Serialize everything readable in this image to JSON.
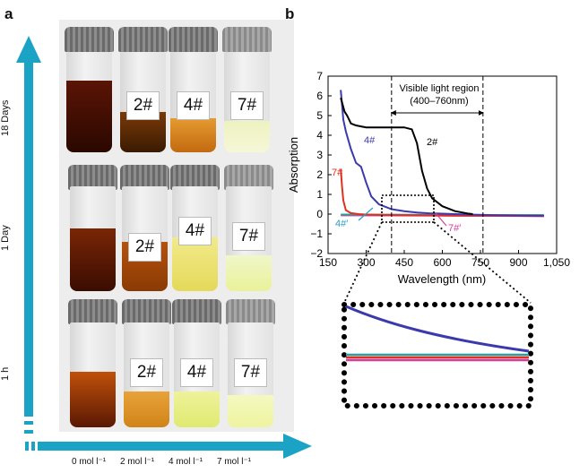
{
  "panel_a": {
    "letter": "a",
    "time_labels": [
      "18 Days",
      "1 Day",
      "1 h"
    ],
    "concentration_labels": [
      "0 mol l⁻¹",
      "2 mol l⁻¹",
      "4 mol l⁻¹",
      "7 mol l⁻¹"
    ],
    "vial_labels": [
      "2#",
      "4#",
      "7#"
    ],
    "colors": {
      "arrow": "#1ba3c6",
      "dark_liquid": "#3a0c02",
      "orange_liquid": "#c86a12",
      "yellow_liquid": "#e8e07a",
      "pale_liquid": "#eef5c8"
    }
  },
  "panel_b": {
    "letter": "b",
    "visible_region_label": "Visible light region",
    "visible_region_range": "(400–760nm)"
  },
  "chart_data": {
    "type": "line",
    "xlabel": "Wavelength (nm)",
    "ylabel": "Absorption",
    "xlim": [
      150,
      1050
    ],
    "ylim": [
      -2,
      7
    ],
    "xticks": [
      150,
      300,
      450,
      600,
      750,
      900,
      1050
    ],
    "xtick_labels": [
      "150",
      "300",
      "450",
      "600",
      "750",
      "900",
      "1,050"
    ],
    "yticks": [
      -2,
      -1,
      0,
      1,
      2,
      3,
      4,
      5,
      6,
      7
    ],
    "grid": false,
    "visible_region": [
      400,
      760
    ],
    "series": [
      {
        "name": "2#",
        "color": "#000000",
        "x": [
          200,
          215,
          225,
          240,
          260,
          280,
          300,
          330,
          360,
          400,
          450,
          480,
          500,
          520,
          540,
          560,
          600,
          650,
          700,
          720
        ],
        "y": [
          5.9,
          5.2,
          5.0,
          4.6,
          4.5,
          4.45,
          4.4,
          4.4,
          4.4,
          4.4,
          4.4,
          4.3,
          3.6,
          2.2,
          1.3,
          0.8,
          0.4,
          0.15,
          0.03,
          0.0
        ]
      },
      {
        "name": "4#",
        "color": "#3a3aad",
        "x": [
          200,
          210,
          220,
          240,
          260,
          280,
          300,
          320,
          350,
          400,
          450,
          500,
          550,
          600,
          650,
          700,
          800,
          900,
          1000
        ],
        "y": [
          6.3,
          4.8,
          4.2,
          3.3,
          2.6,
          2.4,
          1.6,
          0.9,
          0.5,
          0.25,
          0.15,
          0.08,
          0.04,
          0.02,
          0.0,
          -0.02,
          -0.05,
          -0.07,
          -0.08
        ]
      },
      {
        "name": "7#",
        "color": "#e03020",
        "x": [
          200,
          205,
          210,
          220,
          240,
          270,
          300,
          400,
          600,
          800,
          1000
        ],
        "y": [
          2.3,
          1.4,
          0.7,
          0.2,
          0.05,
          0.0,
          -0.02,
          -0.05,
          -0.07,
          -0.08,
          -0.1
        ]
      },
      {
        "name": "",
        "color": "#2aa0a0",
        "x": [
          200,
          400,
          600,
          800,
          1000
        ],
        "y": [
          -0.02,
          -0.03,
          -0.04,
          -0.05,
          -0.05
        ]
      },
      {
        "name": "",
        "color": "#d040a0",
        "x": [
          200,
          400,
          600,
          800,
          1000
        ],
        "y": [
          -0.06,
          -0.07,
          -0.08,
          -0.09,
          -0.1
        ]
      }
    ],
    "annotations": [
      "2#",
      "4#",
      "7#",
      "4#′",
      "7#′"
    ]
  },
  "inset": {
    "description_series": [
      "4#",
      "7#",
      "4#′",
      "7#′"
    ]
  }
}
